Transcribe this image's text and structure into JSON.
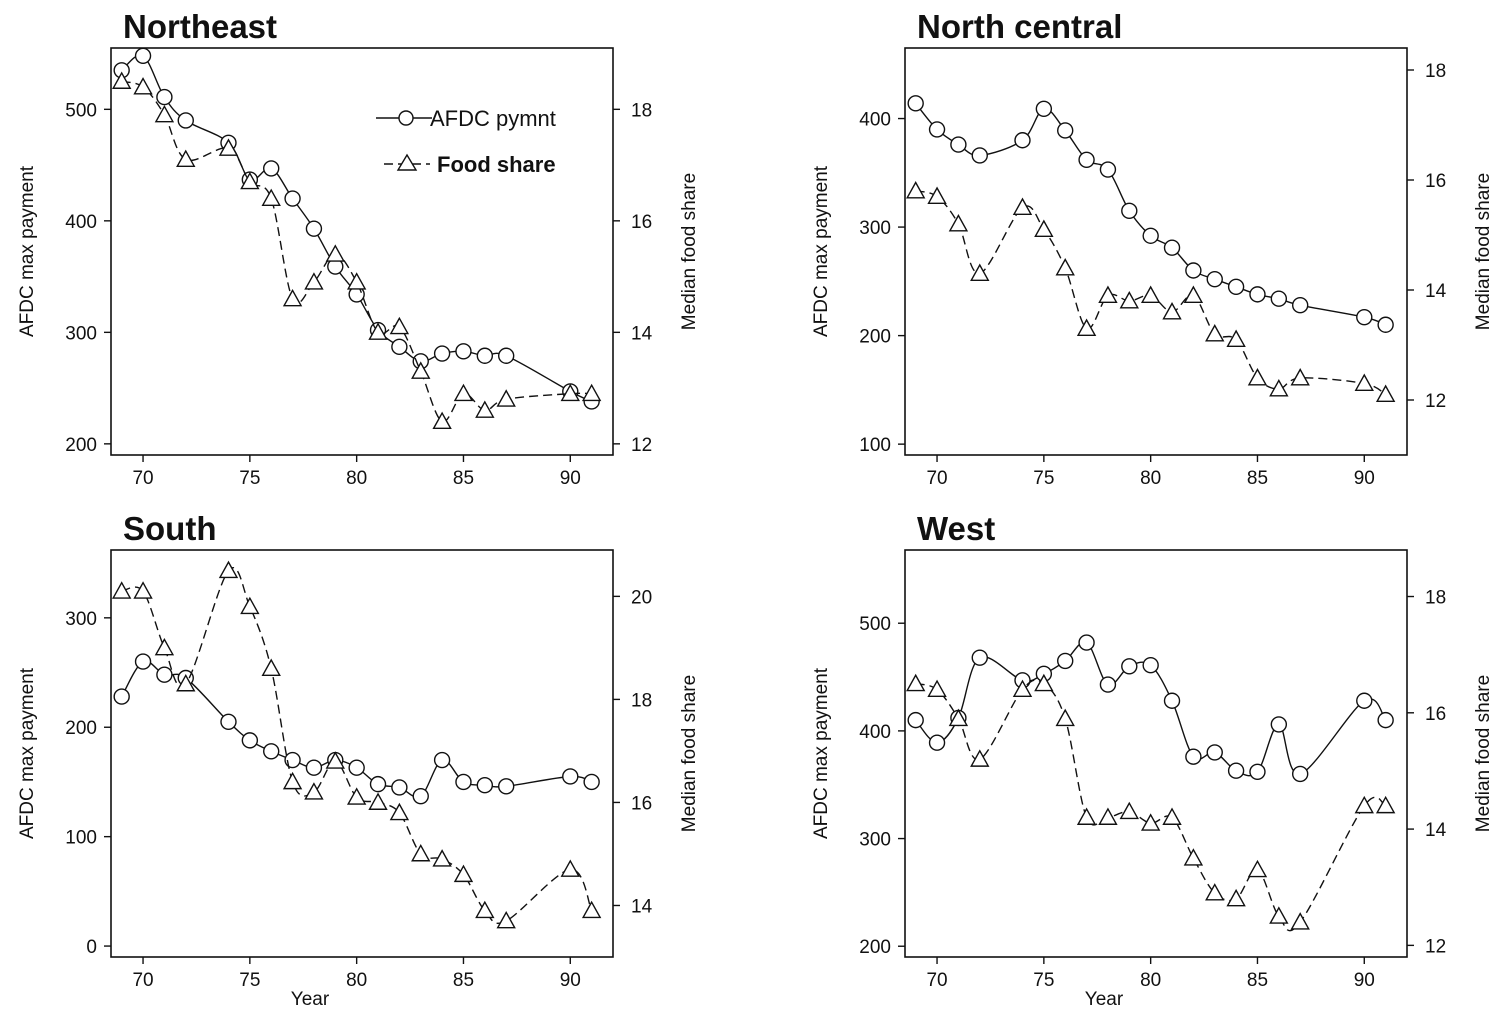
{
  "legend": {
    "afdc": "AFDC pymnt",
    "food": "Food share"
  },
  "xlabel": "Year",
  "ylabel_left": "AFDC max payment",
  "ylabel_right": "Median food share",
  "chart_data": [
    {
      "type": "line",
      "title": "Northeast",
      "x_ticks": [
        70,
        75,
        80,
        85,
        90
      ],
      "xlim": [
        68.5,
        92
      ],
      "left_ticks": [
        200,
        300,
        400,
        500
      ],
      "left_lim": [
        190,
        555
      ],
      "right_ticks": [
        12,
        14,
        16,
        18
      ],
      "right_lim": [
        11.8,
        19.1
      ],
      "xlabel": "",
      "legend_position": "top-right",
      "series": [
        {
          "name": "AFDC pymnt",
          "axis": "left",
          "x": [
            69,
            70,
            71,
            72,
            74,
            75,
            76,
            77,
            78,
            79,
            80,
            81,
            82,
            83,
            84,
            85,
            86,
            87,
            90,
            91
          ],
          "values": [
            535,
            548,
            511,
            490,
            470,
            437,
            447,
            420,
            393,
            359,
            334,
            302,
            287,
            274,
            281,
            283,
            279,
            279,
            247,
            238
          ]
        },
        {
          "name": "Food share",
          "axis": "right",
          "x": [
            69,
            70,
            71,
            72,
            74,
            75,
            76,
            77,
            78,
            79,
            80,
            81,
            82,
            83,
            84,
            85,
            86,
            87,
            90,
            91
          ],
          "values": [
            18.5,
            18.4,
            17.9,
            17.1,
            17.3,
            16.7,
            16.4,
            14.6,
            14.9,
            15.4,
            14.9,
            14.0,
            14.1,
            13.3,
            12.4,
            12.9,
            12.6,
            12.8,
            12.9,
            12.9
          ]
        }
      ]
    },
    {
      "type": "line",
      "title": "North central",
      "x_ticks": [
        70,
        75,
        80,
        85,
        90
      ],
      "xlim": [
        68.5,
        92
      ],
      "left_ticks": [
        100,
        200,
        300,
        400
      ],
      "left_lim": [
        90,
        465
      ],
      "right_ticks": [
        12,
        14,
        16,
        18
      ],
      "right_lim": [
        11.0,
        18.4
      ],
      "xlabel": "",
      "series": [
        {
          "name": "AFDC pymnt",
          "axis": "left",
          "x": [
            69,
            70,
            71,
            72,
            74,
            75,
            76,
            77,
            78,
            79,
            80,
            81,
            82,
            83,
            84,
            85,
            86,
            87,
            90,
            91
          ],
          "values": [
            414,
            390,
            376,
            366,
            380,
            409,
            389,
            362,
            353,
            315,
            292,
            281,
            260,
            252,
            245,
            238,
            234,
            228,
            217,
            210
          ]
        },
        {
          "name": "Food share",
          "axis": "right",
          "x": [
            69,
            70,
            71,
            72,
            74,
            75,
            76,
            77,
            78,
            79,
            80,
            81,
            82,
            83,
            84,
            85,
            86,
            87,
            90,
            91
          ],
          "values": [
            15.8,
            15.7,
            15.2,
            14.3,
            15.5,
            15.1,
            14.4,
            13.3,
            13.9,
            13.8,
            13.9,
            13.6,
            13.9,
            13.2,
            13.1,
            12.4,
            12.2,
            12.4,
            12.3,
            12.1
          ]
        }
      ]
    },
    {
      "type": "line",
      "title": "South",
      "x_ticks": [
        70,
        75,
        80,
        85,
        90
      ],
      "xlim": [
        68.5,
        92
      ],
      "left_ticks": [
        0,
        100,
        200,
        300
      ],
      "left_lim": [
        -10,
        362
      ],
      "right_ticks": [
        14,
        16,
        18,
        20
      ],
      "right_lim": [
        13.0,
        20.9
      ],
      "xlabel": "Year",
      "series": [
        {
          "name": "AFDC pymnt",
          "axis": "left",
          "x": [
            69,
            70,
            71,
            72,
            74,
            75,
            76,
            77,
            78,
            79,
            80,
            81,
            82,
            83,
            84,
            85,
            86,
            87,
            90,
            91
          ],
          "values": [
            228,
            260,
            248,
            245,
            205,
            188,
            178,
            170,
            163,
            170,
            163,
            148,
            145,
            137,
            170,
            150,
            147,
            146,
            155,
            150
          ]
        },
        {
          "name": "Food share",
          "axis": "right",
          "x": [
            69,
            70,
            71,
            72,
            74,
            75,
            76,
            77,
            78,
            79,
            80,
            81,
            82,
            83,
            84,
            85,
            86,
            87,
            90,
            91
          ],
          "values": [
            20.1,
            20.1,
            19.0,
            18.3,
            20.5,
            19.8,
            18.6,
            16.4,
            16.2,
            16.8,
            16.1,
            16.0,
            15.8,
            15.0,
            14.9,
            14.6,
            13.9,
            13.7,
            14.7,
            13.9
          ]
        }
      ]
    },
    {
      "type": "line",
      "title": "West",
      "x_ticks": [
        70,
        75,
        80,
        85,
        90
      ],
      "xlim": [
        68.5,
        92
      ],
      "left_ticks": [
        200,
        300,
        400,
        500
      ],
      "left_lim": [
        190,
        568
      ],
      "right_ticks": [
        12,
        14,
        16,
        18
      ],
      "right_lim": [
        11.8,
        18.8
      ],
      "xlabel": "Year",
      "series": [
        {
          "name": "AFDC pymnt",
          "axis": "left",
          "x": [
            69,
            70,
            71,
            72,
            74,
            75,
            76,
            77,
            78,
            79,
            80,
            81,
            82,
            83,
            84,
            85,
            86,
            87,
            90,
            91
          ],
          "values": [
            410,
            389,
            412,
            468,
            447,
            453,
            465,
            482,
            443,
            460,
            461,
            428,
            376,
            380,
            363,
            362,
            406,
            360,
            428,
            410
          ]
        },
        {
          "name": "Food share",
          "axis": "right",
          "x": [
            69,
            70,
            71,
            72,
            74,
            75,
            76,
            77,
            78,
            79,
            80,
            81,
            82,
            83,
            84,
            85,
            86,
            87,
            90,
            91
          ],
          "values": [
            16.5,
            16.4,
            15.9,
            15.2,
            16.4,
            16.5,
            15.9,
            14.2,
            14.2,
            14.3,
            14.1,
            14.2,
            13.5,
            12.9,
            12.8,
            13.3,
            12.5,
            12.4,
            14.4,
            14.4
          ]
        }
      ]
    }
  ]
}
